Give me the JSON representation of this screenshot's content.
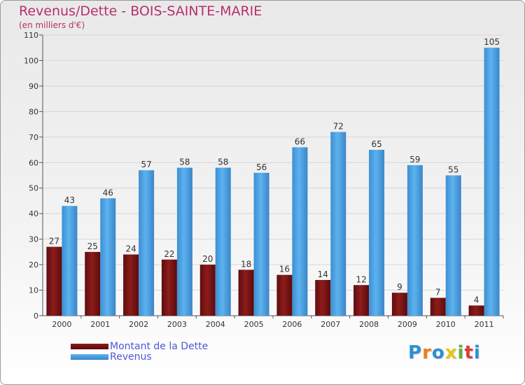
{
  "header": {
    "title": "Revenus/Dette - BOIS-SAINTE-MARIE",
    "subtitle": "(en milliers d'€)"
  },
  "colors": {
    "title": "#b5306b",
    "dette": "#7a1414",
    "revenus": "#4a9fe0",
    "legend_text": "#4e58d6"
  },
  "legend": {
    "dette_label": "Montant de la Dette",
    "revenus_label": "Revenus"
  },
  "logo": {
    "letters": [
      {
        "char": "P",
        "color": "#2c8fd6"
      },
      {
        "char": "r",
        "color": "#ef7d1a"
      },
      {
        "char": "o",
        "color": "#2c8fd6"
      },
      {
        "char": "x",
        "color": "#e8c21a"
      },
      {
        "char": "i",
        "color": "#5fb13a"
      },
      {
        "char": "t",
        "color": "#e03a3a"
      },
      {
        "char": "i",
        "color": "#2c8fd6"
      }
    ]
  },
  "chart_data": {
    "type": "bar",
    "title": "Revenus/Dette - BOIS-SAINTE-MARIE",
    "ylabel": "(en milliers d'€)",
    "xlabel": "",
    "ylim": [
      0,
      110
    ],
    "yticks": [
      0,
      10,
      20,
      30,
      40,
      50,
      60,
      70,
      80,
      90,
      100,
      110
    ],
    "grid": true,
    "legend_position": "bottom-left",
    "categories": [
      "2000",
      "2001",
      "2002",
      "2003",
      "2004",
      "2005",
      "2006",
      "2007",
      "2008",
      "2009",
      "2010",
      "2011"
    ],
    "series": [
      {
        "name": "Montant de la Dette",
        "values": [
          27,
          25,
          24,
          22,
          20,
          18,
          16,
          14,
          12,
          9,
          7,
          4
        ]
      },
      {
        "name": "Revenus",
        "values": [
          43,
          46,
          57,
          58,
          58,
          56,
          66,
          72,
          65,
          59,
          55,
          105
        ]
      }
    ]
  }
}
